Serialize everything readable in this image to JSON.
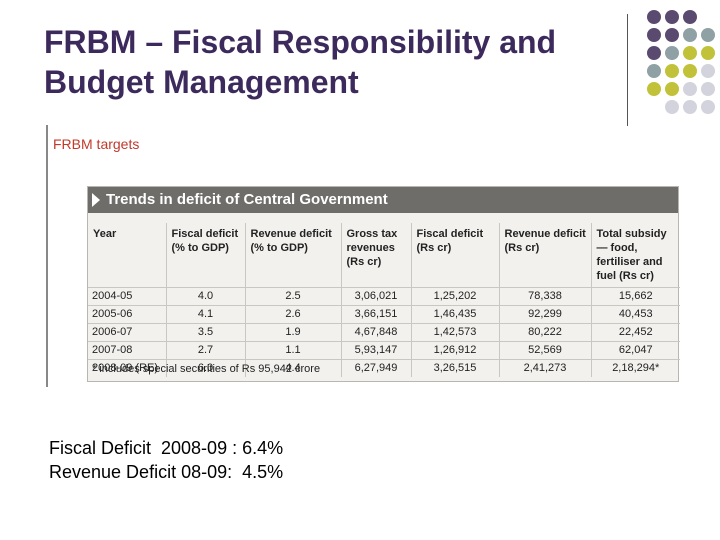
{
  "slide": {
    "title_line1": "FRBM – Fiscal Responsibility and",
    "title_line2": "Budget Management"
  },
  "decor": {
    "dot_colors": {
      "purple": "#5b4a70",
      "grey": "#8fa1a4",
      "olive": "#c2c23a",
      "light": "#d3d3dd"
    }
  },
  "figure": {
    "caption": "FRBM targets",
    "banner": "Trends in deficit of Central Government",
    "columns": [
      "Year",
      "Fiscal deficit (% to GDP)",
      "Revenue deficit (% to GDP)",
      "Gross tax revenues (Rs cr)",
      "Fiscal deficit (Rs cr)",
      "Revenue deficit (Rs cr)",
      "Total subsidy — food, fertiliser and fuel (Rs cr)"
    ],
    "rows": [
      [
        "2004-05",
        "4.0",
        "2.5",
        "3,06,021",
        "1,25,202",
        "78,338",
        "15,662"
      ],
      [
        "2005-06",
        "4.1",
        "2.6",
        "3,66,151",
        "1,46,435",
        "92,299",
        "40,453"
      ],
      [
        "2006-07",
        "3.5",
        "1.9",
        "4,67,848",
        "1,42,573",
        "80,222",
        "22,452"
      ],
      [
        "2007-08",
        "2.7",
        "1.1",
        "5,93,147",
        "1,26,912",
        "52,569",
        "62,047"
      ],
      [
        "2008-09 (RE)",
        "6.0",
        "4.4",
        "6,27,949",
        "3,26,515",
        "2,41,273",
        "2,18,294*"
      ]
    ],
    "footnote": "* includes special securities of Rs 95,942 crore"
  },
  "notes": {
    "line1": "Fiscal Deficit  2008-09 : 6.4%",
    "line2": "Revenue Deficit 08-09:  4.5%"
  }
}
